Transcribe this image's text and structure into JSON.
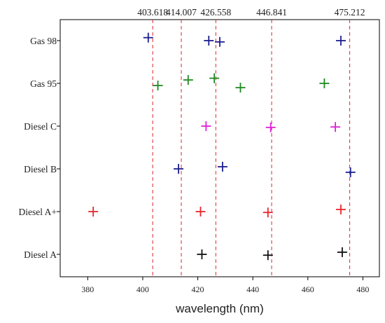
{
  "chart_data": {
    "type": "scatter",
    "xlabel": "wavelength (nm)",
    "xlim": [
      370,
      486
    ],
    "x_ticks": [
      380,
      400,
      420,
      440,
      460,
      480
    ],
    "categories": [
      "Gas 98",
      "Gas 95",
      "Diesel C",
      "Diesel B",
      "Diesel A+",
      "Diesel A"
    ],
    "reference_lines": [
      {
        "value": 403.618,
        "label": "403.618"
      },
      {
        "value": 414.007,
        "label": "414.007"
      },
      {
        "value": 426.558,
        "label": "426.558"
      },
      {
        "value": 446.841,
        "label": "446.841"
      },
      {
        "value": 475.212,
        "label": "475.212"
      }
    ],
    "reference_line_color": "#e0252b",
    "series": [
      {
        "category": "Gas 98",
        "color": "#1b1f8f",
        "points": [
          {
            "x": 402.0,
            "offset": -0.07
          },
          {
            "x": 424.0,
            "offset": 0.0
          },
          {
            "x": 428.0,
            "offset": 0.03
          },
          {
            "x": 472.0,
            "offset": 0.0
          }
        ]
      },
      {
        "category": "Gas 95",
        "color": "#1f8a22",
        "points": [
          {
            "x": 405.5,
            "offset": 0.05
          },
          {
            "x": 416.5,
            "offset": -0.08
          },
          {
            "x": 426.0,
            "offset": -0.12
          },
          {
            "x": 435.5,
            "offset": 0.1
          },
          {
            "x": 466.0,
            "offset": 0.0
          }
        ]
      },
      {
        "category": "Diesel C",
        "color": "#e020d8",
        "points": [
          {
            "x": 423.0,
            "offset": 0.0
          },
          {
            "x": 446.5,
            "offset": 0.03
          },
          {
            "x": 470.0,
            "offset": 0.02
          }
        ]
      },
      {
        "category": "Diesel B",
        "color": "#1b1f8f",
        "points": [
          {
            "x": 413.0,
            "offset": 0.0
          },
          {
            "x": 429.0,
            "offset": -0.05
          },
          {
            "x": 475.5,
            "offset": 0.08
          }
        ]
      },
      {
        "category": "Diesel A+",
        "color": "#e8262a",
        "points": [
          {
            "x": 382.0,
            "offset": 0.0
          },
          {
            "x": 421.0,
            "offset": 0.0
          },
          {
            "x": 445.5,
            "offset": 0.02
          },
          {
            "x": 472.0,
            "offset": -0.05
          }
        ]
      },
      {
        "category": "Diesel A",
        "color": "#111111",
        "points": [
          {
            "x": 421.5,
            "offset": 0.0
          },
          {
            "x": 445.5,
            "offset": 0.02
          },
          {
            "x": 472.5,
            "offset": -0.05
          }
        ]
      }
    ]
  }
}
